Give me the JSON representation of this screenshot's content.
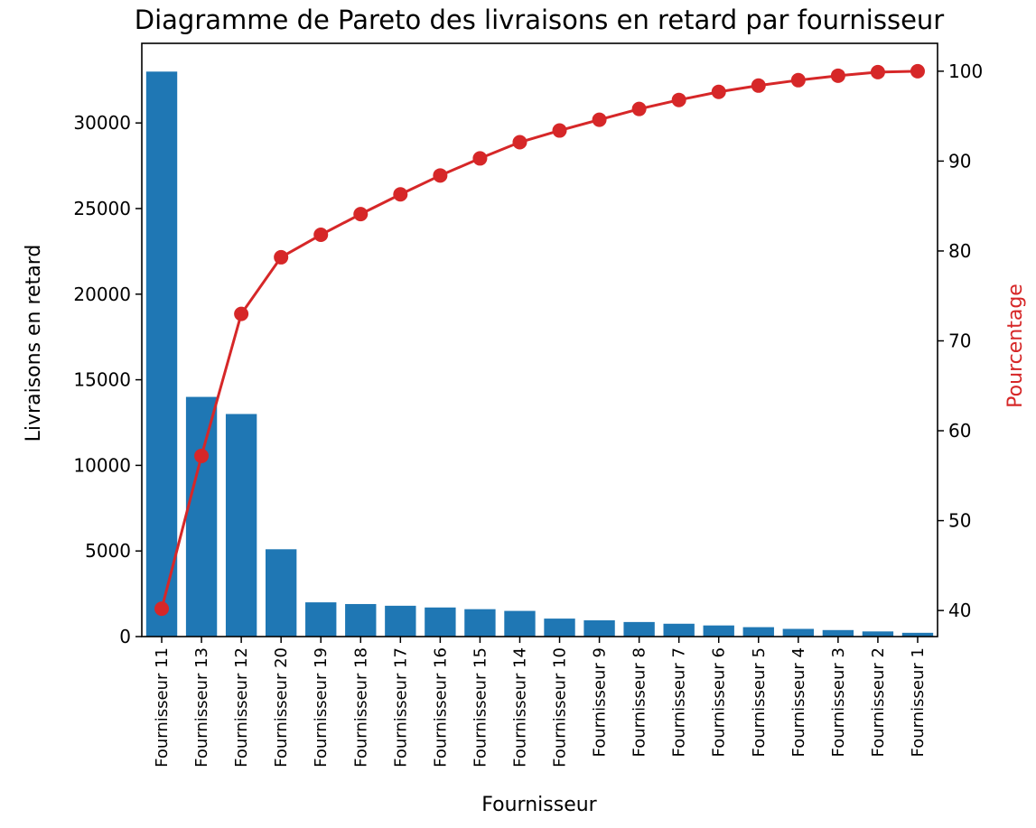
{
  "chart_data": {
    "type": "bar",
    "title": "Diagramme de Pareto des livraisons en retard par fournisseur",
    "xlabel": "Fournisseur",
    "ylabel": "Livraisons en retard",
    "y2label": "Pourcentage",
    "categories": [
      "Fournisseur 11",
      "Fournisseur 13",
      "Fournisseur 12",
      "Fournisseur 20",
      "Fournisseur 19",
      "Fournisseur 18",
      "Fournisseur 17",
      "Fournisseur 16",
      "Fournisseur 15",
      "Fournisseur 14",
      "Fournisseur 10",
      "Fournisseur 9",
      "Fournisseur 8",
      "Fournisseur 7",
      "Fournisseur 6",
      "Fournisseur 5",
      "Fournisseur 4",
      "Fournisseur 3",
      "Fournisseur 2",
      "Fournisseur 1"
    ],
    "series": [
      {
        "kind": "bar",
        "axis": "left",
        "color": "#1f77b4",
        "values": [
          33000,
          14000,
          13000,
          5100,
          2000,
          1900,
          1800,
          1700,
          1600,
          1500,
          1050,
          950,
          850,
          750,
          650,
          550,
          450,
          380,
          300,
          220
        ]
      },
      {
        "kind": "line",
        "axis": "right",
        "color": "#d62728",
        "values": [
          40.2,
          57.2,
          73.0,
          79.3,
          81.8,
          84.1,
          86.3,
          88.4,
          90.3,
          92.1,
          93.4,
          94.6,
          95.8,
          96.8,
          97.7,
          98.4,
          99.0,
          99.5,
          99.9,
          100.0
        ]
      }
    ],
    "yticks": [
      0,
      5000,
      10000,
      15000,
      20000,
      25000,
      30000
    ],
    "y2ticks": [
      40,
      50,
      60,
      70,
      80,
      90,
      100
    ],
    "ylim": [
      0,
      34650
    ],
    "y2lim": [
      37.1,
      103.1
    ],
    "grid": false,
    "legend": "none"
  }
}
